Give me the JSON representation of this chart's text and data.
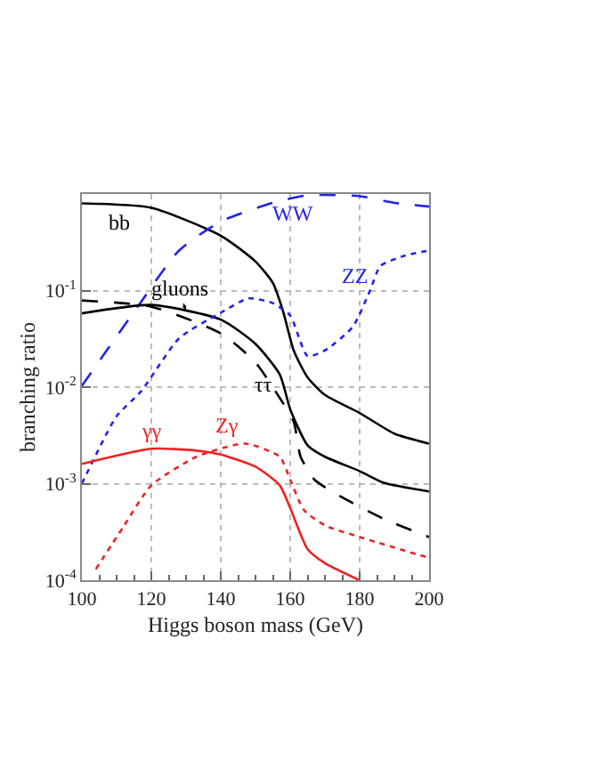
{
  "chart_data": {
    "type": "line",
    "xlabel": "Higgs boson mass (GeV)",
    "ylabel": "branching ratio",
    "log": "y",
    "grid": true,
    "legend": false,
    "xlim": [
      100,
      200
    ],
    "xticks": [
      100,
      120,
      140,
      160,
      180,
      200
    ],
    "ylim": [
      0.0001,
      1
    ],
    "yticks": [
      {
        "value": 0.0001,
        "label": "10$^{-4}$"
      },
      {
        "value": 0.001,
        "label": "10$^{-3}$"
      },
      {
        "value": 0.01,
        "label": "10$^{-2}$"
      },
      {
        "value": 0.1,
        "label": "10$^{-1}$"
      }
    ],
    "series": [
      {
        "name": "bb",
        "color": "#000000",
        "line_style": "solid",
        "x": [
          100,
          120,
          140,
          150,
          155,
          158,
          161,
          165,
          170,
          180,
          190,
          200
        ],
        "values": [
          0.8,
          0.72,
          0.37,
          0.2,
          0.12,
          0.06,
          0.024,
          0.0126,
          0.0083,
          0.0054,
          0.0033,
          0.0026
        ]
      },
      {
        "name": "WW",
        "color": "#2222ee",
        "line_style": "dashed",
        "x": [
          100,
          115,
          128,
          140,
          155,
          165,
          180,
          190,
          200
        ],
        "values": [
          0.0103,
          0.06,
          0.26,
          0.52,
          0.81,
          0.97,
          0.95,
          0.81,
          0.74
        ]
      },
      {
        "name": "gluons",
        "color": "#000000",
        "line_style": "solid",
        "x": [
          100,
          120,
          140,
          150,
          157,
          160,
          165,
          170,
          180,
          187,
          200
        ],
        "values": [
          0.058,
          0.071,
          0.05,
          0.028,
          0.0135,
          0.0059,
          0.0025,
          0.0019,
          0.00135,
          0.00102,
          0.00083
        ]
      },
      {
        "name": "ττ",
        "color": "#000000",
        "line_style": "dashed",
        "x": [
          100,
          120,
          140,
          150,
          157,
          161,
          163,
          167,
          175,
          187,
          200
        ],
        "values": [
          0.079,
          0.068,
          0.036,
          0.018,
          0.0077,
          0.0044,
          0.0019,
          0.0011,
          0.00072,
          0.00043,
          0.00028
        ]
      },
      {
        "name": "ZZ",
        "color": "#2222ee",
        "line_style": "dotted",
        "x": [
          100,
          110,
          117,
          128,
          140,
          148,
          155,
          160,
          165,
          170,
          178,
          183,
          186,
          193,
          200
        ],
        "values": [
          0.001,
          0.005,
          0.009,
          0.032,
          0.059,
          0.083,
          0.074,
          0.055,
          0.021,
          0.024,
          0.042,
          0.1,
          0.18,
          0.23,
          0.26
        ]
      },
      {
        "name": "γγ",
        "color": "#ee2222",
        "line_style": "solid",
        "x": [
          100,
          120,
          133,
          140,
          150,
          157,
          160,
          165,
          170,
          180
        ],
        "values": [
          0.0016,
          0.0023,
          0.0022,
          0.002,
          0.0015,
          0.00096,
          0.00056,
          0.00021,
          0.00015,
          0.0001
        ]
      },
      {
        "name": "Zγ",
        "color": "#ee2222",
        "line_style": "dotted",
        "x": [
          104,
          112,
          120,
          133,
          147,
          157,
          160,
          164,
          170,
          180,
          200
        ],
        "values": [
          0.00013,
          0.00036,
          0.00096,
          0.0019,
          0.0026,
          0.0019,
          0.0011,
          0.00053,
          0.00037,
          0.00028,
          0.00017
        ]
      }
    ]
  }
}
